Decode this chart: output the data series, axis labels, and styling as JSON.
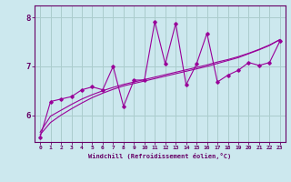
{
  "xlabel": "Windchill (Refroidissement éolien,°C)",
  "ylabel": "",
  "bg_color": "#cce8ee",
  "line_color": "#990099",
  "grid_color": "#aacccc",
  "axis_color": "#660066",
  "xlim": [
    -0.5,
    23.5
  ],
  "ylim": [
    5.45,
    8.25
  ],
  "yticks": [
    6,
    7,
    8
  ],
  "xticks": [
    0,
    1,
    2,
    3,
    4,
    5,
    6,
    7,
    8,
    9,
    10,
    11,
    12,
    13,
    14,
    15,
    16,
    17,
    18,
    19,
    20,
    21,
    22,
    23
  ],
  "x_data": [
    0,
    1,
    2,
    3,
    4,
    5,
    6,
    7,
    8,
    9,
    10,
    11,
    12,
    13,
    14,
    15,
    16,
    17,
    18,
    19,
    20,
    21,
    22,
    23
  ],
  "y_main": [
    5.55,
    6.28,
    6.33,
    6.38,
    6.52,
    6.58,
    6.52,
    7.0,
    6.18,
    6.72,
    6.72,
    7.92,
    7.05,
    7.88,
    6.62,
    7.05,
    7.68,
    6.68,
    6.82,
    6.92,
    7.08,
    7.02,
    7.08,
    7.52
  ],
  "y_smooth1": [
    5.65,
    5.98,
    6.1,
    6.22,
    6.33,
    6.42,
    6.5,
    6.57,
    6.63,
    6.68,
    6.73,
    6.78,
    6.83,
    6.88,
    6.93,
    6.98,
    7.03,
    7.09,
    7.14,
    7.2,
    7.27,
    7.35,
    7.44,
    7.55
  ],
  "y_smooth2": [
    5.6,
    5.85,
    6.0,
    6.13,
    6.25,
    6.36,
    6.45,
    6.53,
    6.6,
    6.65,
    6.7,
    6.75,
    6.8,
    6.85,
    6.9,
    6.95,
    7.0,
    7.06,
    7.12,
    7.18,
    7.26,
    7.34,
    7.43,
    7.55
  ]
}
